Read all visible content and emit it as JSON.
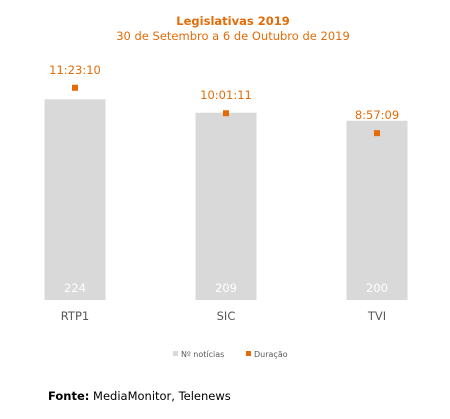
{
  "chart_data": {
    "type": "bar",
    "title": "Legislativas 2019",
    "subtitle": "30 de Setembro a 6 de Outubro de 2019",
    "categories": [
      "RTP1",
      "SIC",
      "TVI"
    ],
    "series": [
      {
        "name": "Nº notícias",
        "type": "bar",
        "values": [
          224,
          209,
          200
        ],
        "labels": [
          "224",
          "209",
          "200"
        ]
      },
      {
        "name": "Duração",
        "type": "scatter",
        "values": [
          "11:23:10",
          "10:01:11",
          "8:57:09"
        ],
        "seconds": [
          40990,
          36071,
          32229
        ]
      }
    ],
    "bar_ylim": [
      0,
      260
    ],
    "duration_ylim_seconds": [
      0,
      45000
    ],
    "legend_position": "bottom",
    "colors": {
      "bar": "#d9d9d9",
      "marker": "#e36c09",
      "title": "#e36c09",
      "bar_label": "#ffffff",
      "axis_text": "#595959"
    }
  },
  "source": {
    "label": "Fonte:",
    "text": " MediaMonitor, Telenews"
  }
}
